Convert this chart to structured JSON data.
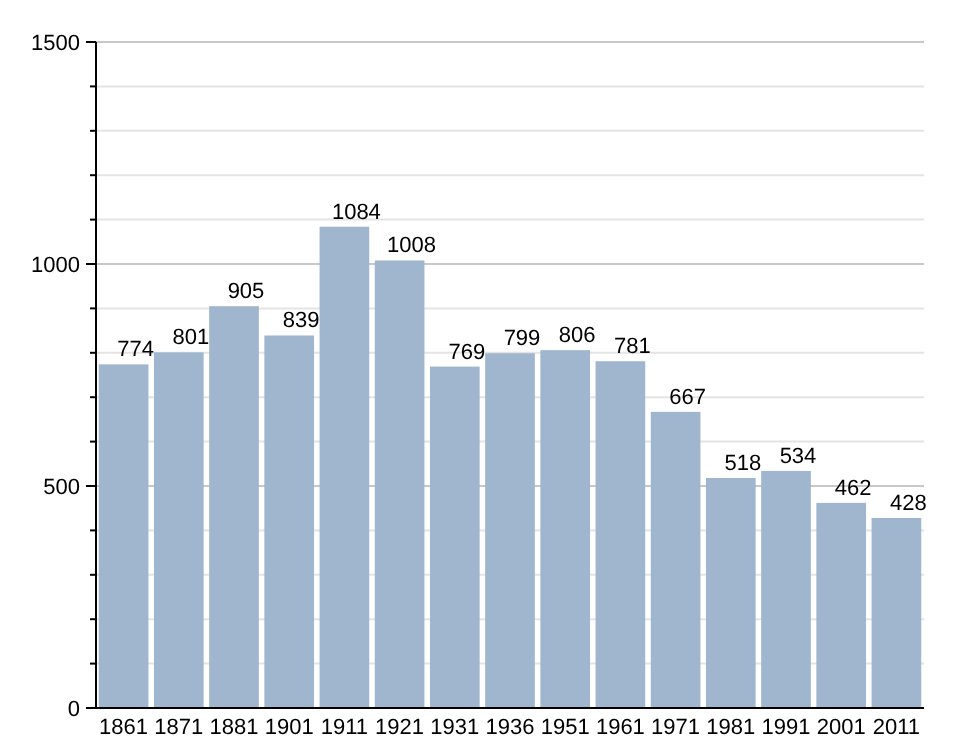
{
  "chart_data": {
    "type": "bar",
    "categories": [
      "1861",
      "1871",
      "1881",
      "1901",
      "1911",
      "1921",
      "1931",
      "1936",
      "1951",
      "1961",
      "1971",
      "1981",
      "1991",
      "2001",
      "2011"
    ],
    "values": [
      774,
      801,
      905,
      839,
      1084,
      1008,
      769,
      799,
      806,
      781,
      667,
      518,
      534,
      462,
      428
    ],
    "color": "#9fb6ce",
    "ylim": [
      0,
      1500
    ],
    "yticks": [
      0,
      {
        "value": 100,
        "label": null
      },
      {
        "value": 200,
        "label": null
      },
      {
        "value": 300,
        "label": null
      },
      {
        "value": 400,
        "label": null
      },
      500,
      {
        "value": 600,
        "label": null
      },
      {
        "value": 700,
        "label": null
      },
      {
        "value": 800,
        "label": null
      },
      {
        "value": 900,
        "label": null
      },
      1000,
      {
        "value": 1100,
        "label": null
      },
      {
        "value": 1200,
        "label": null
      },
      {
        "value": 1300,
        "label": null
      },
      {
        "value": 1400,
        "label": null
      },
      1500
    ],
    "grid": "y",
    "data_labels": true
  }
}
